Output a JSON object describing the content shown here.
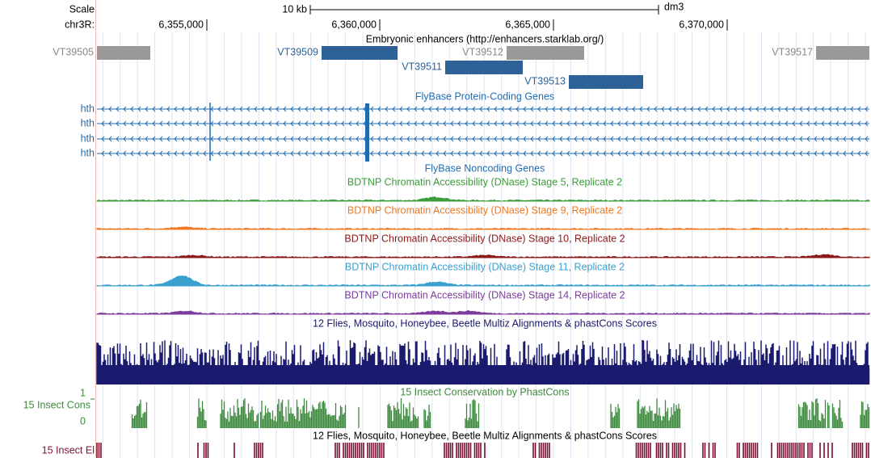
{
  "ruler": {
    "scale_label": "Scale",
    "scale_bar": "10 kb",
    "assembly": "dm3",
    "chrom": "chr3R:",
    "positions": [
      "6,355,000",
      "6,360,000",
      "6,365,000",
      "6,370,000"
    ]
  },
  "enhancers": {
    "title": "Embryonic enhancers (http://enhancers.starklab.org/)",
    "items": [
      "VT39505",
      "VT39509",
      "VT39511",
      "VT39512",
      "VT39513",
      "VT39517"
    ]
  },
  "genes": {
    "title": "FlyBase Protein-Coding Genes",
    "labels": [
      "hth",
      "hth",
      "hth",
      "hth"
    ]
  },
  "noncoding": {
    "title": "FlyBase Noncoding Genes"
  },
  "dnase": [
    {
      "title": "BDTNP Chromatin Accessibility (DNase) Stage 5, Replicate 2",
      "color": "#3a9c3a"
    },
    {
      "title": "BDTNP Chromatin Accessibility (DNase) Stage 9, Replicate 2",
      "color": "#f07820"
    },
    {
      "title": "BDTNP Chromatin Accessibility (DNase) Stage 10, Replicate 2",
      "color": "#8b1a1a"
    },
    {
      "title": "BDTNP Chromatin Accessibility (DNase) Stage 11, Replicate 2",
      "color": "#3ba0d0"
    },
    {
      "title": "BDTNP Chromatin Accessibility (DNase) Stage 14, Replicate 2",
      "color": "#7b3c9b"
    }
  ],
  "multiz": {
    "title": "12 Flies, Mosquito, Honeybee, Beetle Multiz Alignments & phastCons Scores"
  },
  "cons": {
    "title": "15 Insect Conservation by PhastCons",
    "label": "15 Insect Cons",
    "ymax": "1",
    "ymin": "0"
  },
  "elements": {
    "title": "12 Flies, Mosquito, Honeybee, Beetle Multiz Alignments & phastCons Scores",
    "label": "15 Insect El"
  }
}
